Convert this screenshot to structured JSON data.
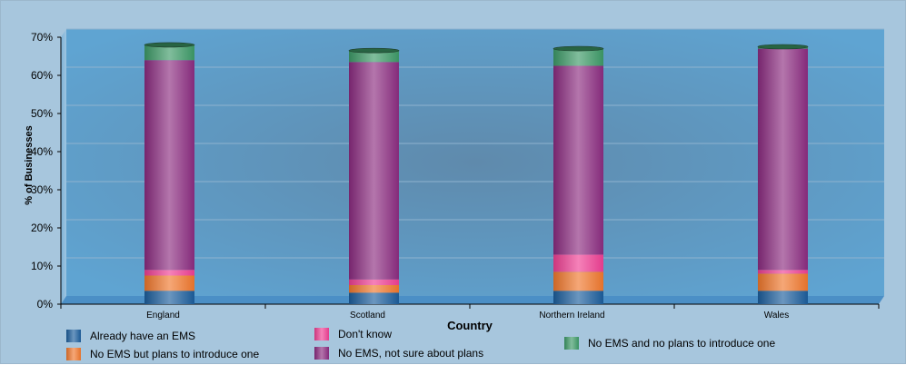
{
  "chart_data": {
    "type": "bar",
    "stacked": true,
    "xlabel": "Country",
    "ylabel": "% of Businesses",
    "ylim": [
      0,
      70
    ],
    "yticks": [
      "0%",
      "10%",
      "20%",
      "30%",
      "40%",
      "50%",
      "60%",
      "70%"
    ],
    "categories": [
      "England",
      "Scotland",
      "Northern Ireland",
      "Wales"
    ],
    "series": [
      {
        "name": "Already have an EMS",
        "color": "#1c5e9c",
        "values": [
          3.5,
          3,
          3.5,
          3.5
        ]
      },
      {
        "name": "No EMS but plans to introduce one",
        "color": "#f0782d",
        "values": [
          4,
          2,
          5,
          4.5
        ]
      },
      {
        "name": "Don't know",
        "color": "#ef3f93",
        "values": [
          1.5,
          1.5,
          4.5,
          1
        ]
      },
      {
        "name": "No EMS, not sure about plans",
        "color": "#8b2c80",
        "values": [
          55,
          57,
          49.5,
          58
        ]
      },
      {
        "name": "No EMS and no plans to introduce one",
        "color": "#3d9a67",
        "values": [
          4,
          3,
          4.5,
          0.5
        ]
      }
    ],
    "legend_position": "bottom",
    "grid": true
  }
}
